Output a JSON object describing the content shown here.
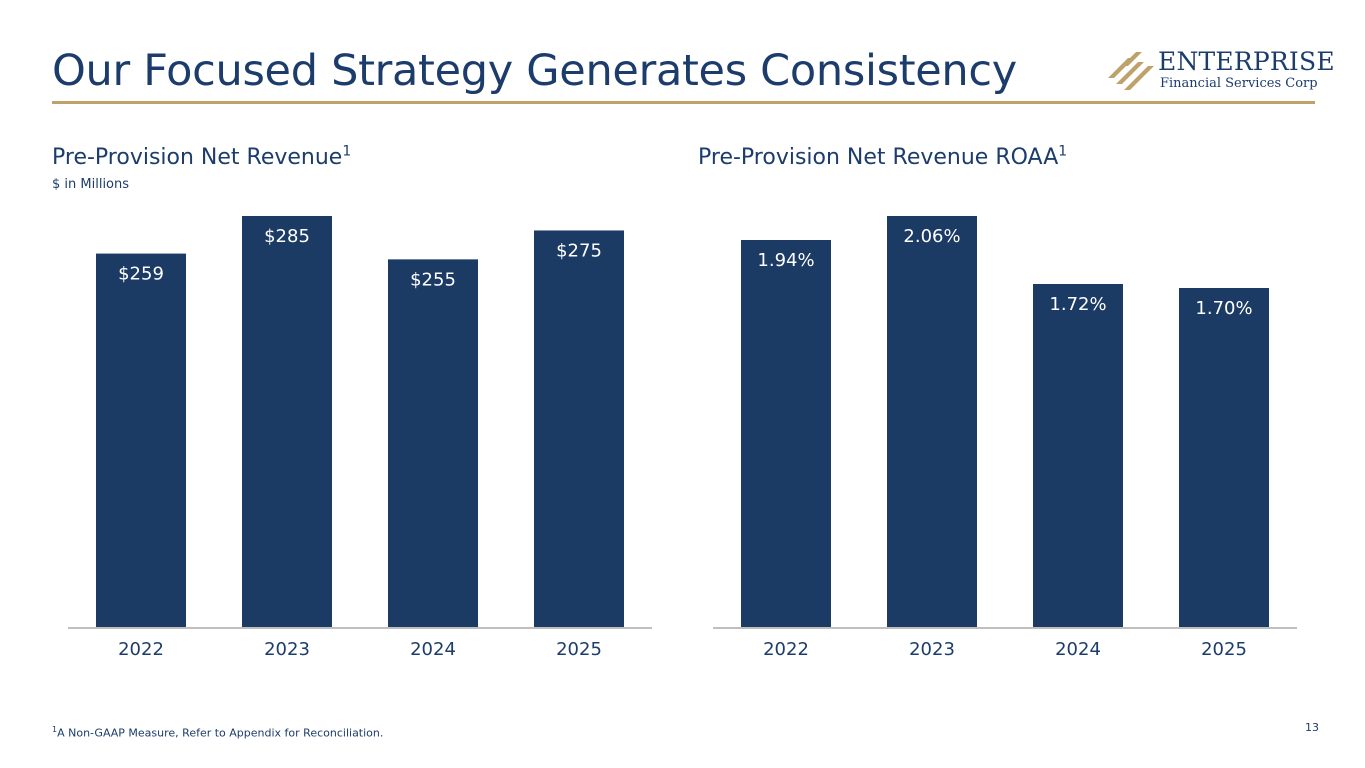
{
  "slide": {
    "title": "Our Focused Strategy Generates Consistency",
    "page_number": "13",
    "footnote_marker": "1",
    "footnote_text": "A Non-GAAP Measure, Refer to Appendix for Reconciliation."
  },
  "logo": {
    "name": "ENTERPRISE",
    "subtitle": "Financial Services Corp",
    "icon": "enterprise-logo-mark"
  },
  "colors": {
    "bar": "#1b3a64",
    "title": "#1c3c6c",
    "rule": "#bea26a",
    "axis": "#bfbfbf",
    "tick": "#1c3c6c",
    "label": "#ffffff"
  },
  "chart_data": [
    {
      "type": "bar",
      "title": "Pre-Provision Net Revenue",
      "title_marker": "1",
      "subtitle": "$ in Millions",
      "categories": [
        "2022",
        "2023",
        "2024",
        "2025"
      ],
      "values": [
        259,
        285,
        255,
        275
      ],
      "labels": [
        "$259",
        "$285",
        "$255",
        "$275"
      ],
      "xlabel": "",
      "ylabel": "",
      "ylim": [
        0,
        285
      ],
      "grid": false,
      "legend": "none"
    },
    {
      "type": "bar",
      "title": "Pre-Provision Net Revenue ROAA",
      "title_marker": "1",
      "categories": [
        "2022",
        "2023",
        "2024",
        "2025"
      ],
      "values": [
        1.94,
        2.06,
        1.72,
        1.7
      ],
      "labels": [
        "1.94%",
        "2.06%",
        "1.72%",
        "1.70%"
      ],
      "xlabel": "",
      "ylabel": "",
      "ylim": [
        0,
        2.06
      ],
      "grid": false,
      "legend": "none"
    }
  ]
}
